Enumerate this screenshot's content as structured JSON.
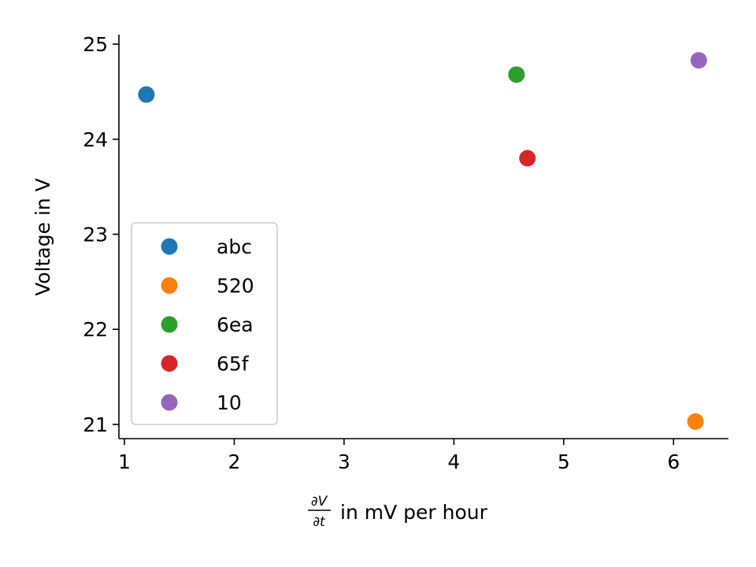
{
  "chart_data": {
    "type": "scatter",
    "title": "",
    "xlabel": {
      "fraction_numerator": "∂V",
      "fraction_denominator": "∂t",
      "text": "in mV per hour"
    },
    "ylabel": "Voltage in V",
    "xlim": [
      0.95,
      6.5
    ],
    "ylim": [
      20.85,
      25.1
    ],
    "xticks": [
      1,
      2,
      3,
      4,
      5,
      6
    ],
    "yticks": [
      21,
      22,
      23,
      24,
      25
    ],
    "grid": false,
    "legend": {
      "placement": "lower-left"
    },
    "series": [
      {
        "name": "abc",
        "color": "#1f77b4",
        "x": 1.2,
        "y": 24.47
      },
      {
        "name": "520",
        "color": "#ff7f0e",
        "x": 6.2,
        "y": 21.03
      },
      {
        "name": "6ea",
        "color": "#2ca02c",
        "x": 4.57,
        "y": 24.68
      },
      {
        "name": "65f",
        "color": "#d62728",
        "x": 4.67,
        "y": 23.8
      },
      {
        "name": "10",
        "color": "#9467bd",
        "x": 6.23,
        "y": 24.83
      }
    ]
  }
}
